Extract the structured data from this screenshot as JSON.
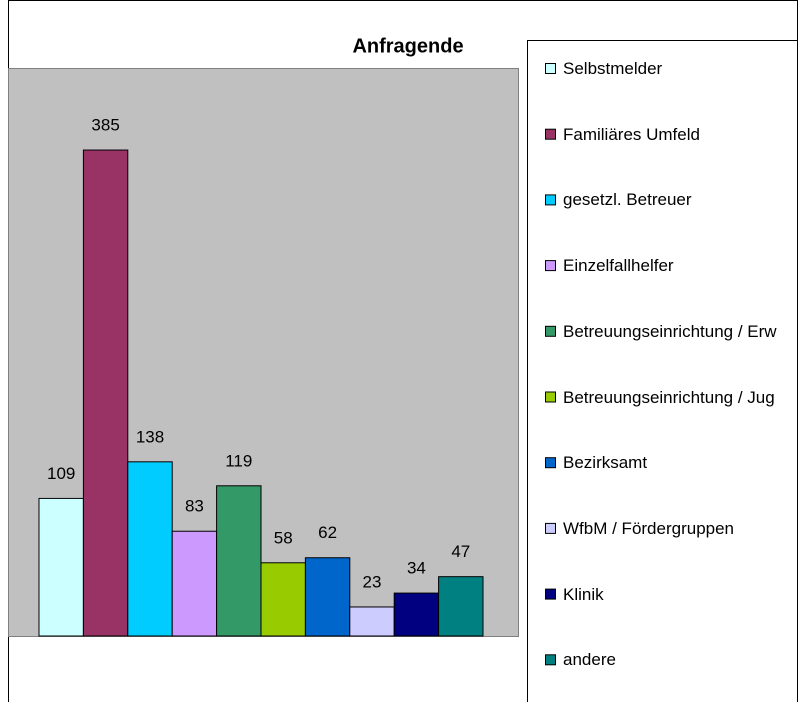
{
  "chart_data": {
    "type": "bar",
    "title": "Anfragende",
    "ylim": [
      0,
      450
    ],
    "series": [
      {
        "name": "Selbstmelder",
        "color": "#ccffff",
        "values": [
          109
        ]
      },
      {
        "name": "Familiäres Umfeld",
        "color": "#993366",
        "values": [
          385
        ]
      },
      {
        "name": "gesetzl. Betreuer",
        "color": "#00ccff",
        "values": [
          138
        ]
      },
      {
        "name": "Einzelfallhelfer",
        "color": "#cc99ff",
        "values": [
          83
        ]
      },
      {
        "name": "Betreuungseinrichtung / Erw",
        "color": "#339966",
        "values": [
          119
        ]
      },
      {
        "name": "Betreuungseinrichtung / Jug",
        "color": "#99cc00",
        "values": [
          58
        ]
      },
      {
        "name": "Bezirksamt",
        "color": "#0066cc",
        "values": [
          62
        ]
      },
      {
        "name": "WfbM / Fördergruppen",
        "color": "#ccccff",
        "values": [
          23
        ]
      },
      {
        "name": "Klinik",
        "color": "#000080",
        "values": [
          34
        ]
      },
      {
        "name": "andere",
        "color": "#008080",
        "values": [
          47
        ]
      }
    ]
  }
}
